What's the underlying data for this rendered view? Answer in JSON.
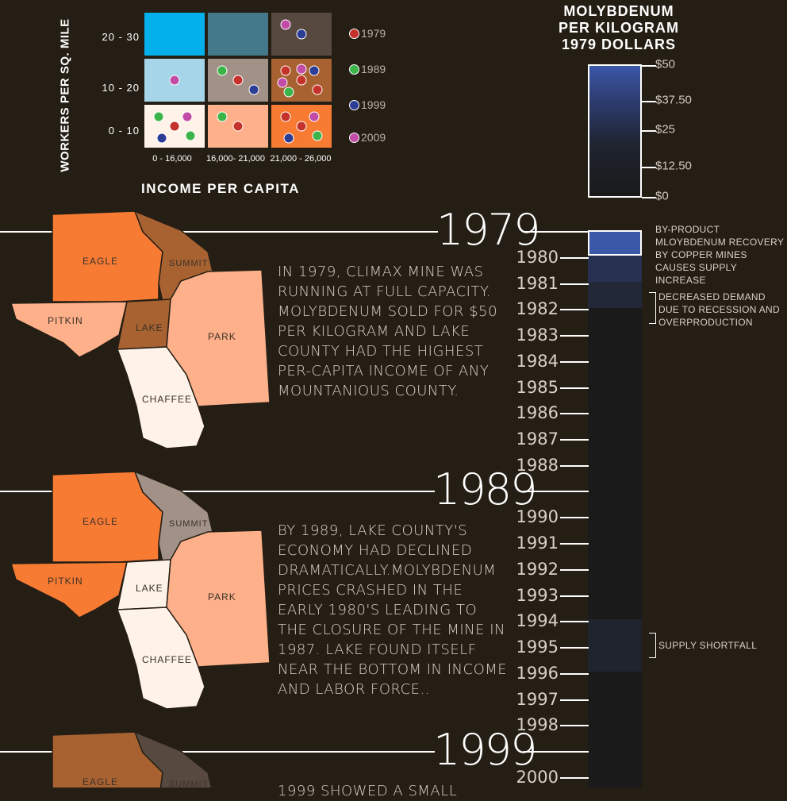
{
  "grid": {
    "ytitle": "WORKERS PER SQ. MILE",
    "xtitle": "INCOME PER CAPITA",
    "rows": [
      "20 - 30",
      "10 - 20",
      "0 - 10"
    ],
    "cols": [
      "0 - 16,000",
      "16,000- 21,000",
      "21,000 - 26,000"
    ],
    "cell_colors": [
      [
        "#04b0eb",
        "#44788b",
        "#574940"
      ],
      [
        "#a6d5ea",
        "#a19187",
        "#a86232"
      ],
      [
        "#fff2e8",
        "#fdb08a",
        "#f87b34"
      ]
    ]
  },
  "legend": [
    {
      "label": "1979",
      "color": "#c5312b"
    },
    {
      "label": "1989",
      "color": "#3bb54a"
    },
    {
      "label": "1999",
      "color": "#2c3d96"
    },
    {
      "label": "2009",
      "color": "#c24ba8"
    }
  ],
  "chart_data": {
    "type": "scatter",
    "x_categories": [
      "0 - 16,000",
      "16,000- 21,000",
      "21,000 - 26,000"
    ],
    "y_categories": [
      "0 - 10",
      "10 - 20",
      "20 - 30"
    ],
    "xlabel": "INCOME PER CAPITA",
    "ylabel": "WORKERS PER SQ. MILE",
    "series": [
      {
        "name": "1979",
        "color": "#c5312b",
        "points": [
          [
            0,
            0
          ],
          [
            1,
            0
          ],
          [
            2,
            0
          ],
          [
            2,
            0
          ],
          [
            1,
            1
          ],
          [
            2,
            1
          ],
          [
            2,
            1
          ],
          [
            2,
            1
          ]
        ]
      },
      {
        "name": "1989",
        "color": "#3bb54a",
        "points": [
          [
            0,
            0
          ],
          [
            0,
            0
          ],
          [
            1,
            0
          ],
          [
            2,
            0
          ],
          [
            1,
            1
          ],
          [
            2,
            1
          ]
        ]
      },
      {
        "name": "1999",
        "color": "#2c3d96",
        "points": [
          [
            0,
            0
          ],
          [
            2,
            0
          ],
          [
            1,
            1
          ],
          [
            2,
            1
          ],
          [
            2,
            2
          ]
        ]
      },
      {
        "name": "2009",
        "color": "#c24ba8",
        "points": [
          [
            0,
            0
          ],
          [
            2,
            0
          ],
          [
            0,
            1
          ],
          [
            2,
            1
          ],
          [
            2,
            1
          ],
          [
            2,
            2
          ]
        ]
      }
    ]
  },
  "scale": {
    "title_lines": [
      "MOLYBDENUM",
      "PER KILOGRAM",
      "1979 DOLLARS"
    ],
    "ticks": [
      "$50",
      "$37.50",
      "$25",
      "$12.50",
      "$0"
    ]
  },
  "timeline": {
    "big_years": [
      "1979",
      "1989",
      "1999"
    ],
    "small_years": [
      "1980",
      "1981",
      "1982",
      "1983",
      "1984",
      "1985",
      "1986",
      "1987",
      "1988",
      "1990",
      "1991",
      "1992",
      "1993",
      "1994",
      "1995",
      "1996",
      "1997",
      "1998",
      "2000"
    ],
    "notes": [
      "BY-PRODUCT MLOYBDENUM RECOVERY BY COPPER MINES CAUSES SUPPLY INCREASE",
      "DECREASED DEMAND DUE TO RECESSION AND OVERPRODUCTION",
      "SUPPLY SHORTFALL"
    ]
  },
  "counties": {
    "eagle": "EAGLE",
    "summit": "SUMMIT",
    "pitkin": "PITKIN",
    "lake": "LAKE",
    "park": "PARK",
    "chaffee": "CHAFFEE"
  },
  "stories": [
    "IN 1979, CLIMAX MINE WAS RUNNING AT FULL CAPACITY. MOLYBDENUM SOLD FOR $50 PER KILOGRAM AND LAKE COUNTY HAD THE HIGHEST PER-CAPITA INCOME OF ANY MOUNTANIOUS COUNTY.",
    "BY 1989, LAKE COUNTY'S ECONOMY HAD DECLINED DRAMATICALLY.MOLYBDENUM PRICES CRASHED IN THE EARLY 1980'S LEADING TO THE CLOSURE OF THE MINE IN 1987. LAKE FOUND ITSELF NEAR THE BOTTOM IN INCOME AND LABOR FORCE..",
    "1999 SHOWED A SMALL"
  ]
}
